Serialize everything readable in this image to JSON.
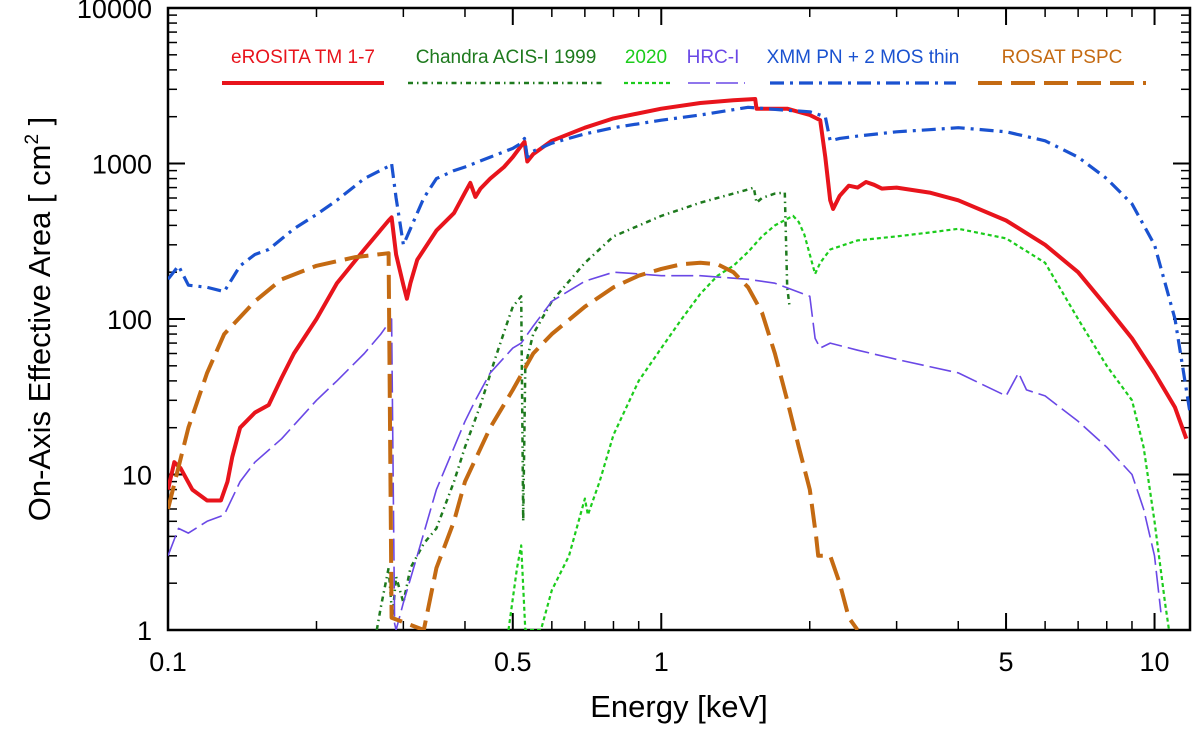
{
  "chart_data": {
    "type": "line",
    "xscale": "log",
    "yscale": "log",
    "xlim": [
      0.1,
      11.8
    ],
    "ylim": [
      1,
      10000
    ],
    "xlabel": "Energy  [keV]",
    "ylabel": {
      "text": "On-Axis Effective Area  [ cm",
      "sup": "2",
      "close": " ]"
    },
    "x_ticks": [
      {
        "value": 0.1,
        "label": "0.1"
      },
      {
        "value": 0.5,
        "label": "0.5"
      },
      {
        "value": 1,
        "label": "1"
      },
      {
        "value": 5,
        "label": "5"
      },
      {
        "value": 10,
        "label": "10"
      }
    ],
    "y_ticks": [
      {
        "value": 1,
        "label": "1"
      },
      {
        "value": 10,
        "label": "10"
      },
      {
        "value": 100,
        "label": "100"
      },
      {
        "value": 1000,
        "label": "1000"
      },
      {
        "value": 10000,
        "label": "10000"
      }
    ],
    "legend_position": "top",
    "series": [
      {
        "id": "erosita",
        "name": "eROSITA TM 1-7",
        "color": "#e8141c",
        "dash": "solid",
        "width": 4,
        "points": [
          [
            0.1,
            8
          ],
          [
            0.103,
            12
          ],
          [
            0.106,
            11
          ],
          [
            0.112,
            8
          ],
          [
            0.12,
            6.8
          ],
          [
            0.128,
            6.8
          ],
          [
            0.132,
            9
          ],
          [
            0.135,
            13
          ],
          [
            0.14,
            20
          ],
          [
            0.15,
            25
          ],
          [
            0.16,
            28
          ],
          [
            0.17,
            42
          ],
          [
            0.18,
            60
          ],
          [
            0.2,
            100
          ],
          [
            0.22,
            170
          ],
          [
            0.25,
            280
          ],
          [
            0.28,
            430
          ],
          [
            0.284,
            450
          ],
          [
            0.29,
            260
          ],
          [
            0.3,
            165
          ],
          [
            0.305,
            135
          ],
          [
            0.31,
            170
          ],
          [
            0.32,
            240
          ],
          [
            0.35,
            370
          ],
          [
            0.38,
            480
          ],
          [
            0.4,
            650
          ],
          [
            0.41,
            750
          ],
          [
            0.42,
            610
          ],
          [
            0.43,
            690
          ],
          [
            0.45,
            800
          ],
          [
            0.48,
            950
          ],
          [
            0.5,
            1100
          ],
          [
            0.52,
            1300
          ],
          [
            0.528,
            1380
          ],
          [
            0.535,
            1030
          ],
          [
            0.55,
            1150
          ],
          [
            0.6,
            1400
          ],
          [
            0.7,
            1700
          ],
          [
            0.8,
            1950
          ],
          [
            1.0,
            2250
          ],
          [
            1.2,
            2450
          ],
          [
            1.4,
            2550
          ],
          [
            1.55,
            2600
          ],
          [
            1.56,
            2250
          ],
          [
            1.8,
            2250
          ],
          [
            2.0,
            2050
          ],
          [
            2.1,
            1900
          ],
          [
            2.15,
            1100
          ],
          [
            2.2,
            580
          ],
          [
            2.23,
            510
          ],
          [
            2.3,
            620
          ],
          [
            2.4,
            720
          ],
          [
            2.5,
            700
          ],
          [
            2.6,
            760
          ],
          [
            2.7,
            730
          ],
          [
            2.8,
            690
          ],
          [
            3.0,
            700
          ],
          [
            3.5,
            650
          ],
          [
            4.0,
            580
          ],
          [
            5.0,
            430
          ],
          [
            6.0,
            300
          ],
          [
            7.0,
            200
          ],
          [
            8.0,
            120
          ],
          [
            9.0,
            75
          ],
          [
            10.0,
            45
          ],
          [
            11.0,
            27
          ],
          [
            11.6,
            17
          ]
        ]
      },
      {
        "id": "acis1999",
        "name": "Chandra ACIS-I 1999",
        "color": "#1e7a1e",
        "dash": "5,4,1.5,4",
        "width": 2.5,
        "points": [
          [
            0.265,
            1
          ],
          [
            0.27,
            1.4
          ],
          [
            0.28,
            2.5
          ],
          [
            0.285,
            1.2
          ],
          [
            0.29,
            2.2
          ],
          [
            0.3,
            1.5
          ],
          [
            0.31,
            2.5
          ],
          [
            0.33,
            3.6
          ],
          [
            0.35,
            4.5
          ],
          [
            0.38,
            9
          ],
          [
            0.4,
            15
          ],
          [
            0.43,
            28
          ],
          [
            0.46,
            55
          ],
          [
            0.49,
            100
          ],
          [
            0.5,
            120
          ],
          [
            0.52,
            140
          ],
          [
            0.523,
            20
          ],
          [
            0.525,
            5
          ],
          [
            0.53,
            50
          ],
          [
            0.55,
            80
          ],
          [
            0.6,
            130
          ],
          [
            0.7,
            230
          ],
          [
            0.8,
            340
          ],
          [
            1.0,
            460
          ],
          [
            1.2,
            560
          ],
          [
            1.5,
            680
          ],
          [
            1.54,
            700
          ],
          [
            1.56,
            560
          ],
          [
            1.6,
            600
          ],
          [
            1.7,
            640
          ],
          [
            1.78,
            650
          ],
          [
            1.8,
            160
          ],
          [
            1.82,
            120
          ]
        ]
      },
      {
        "id": "acis2020",
        "name": "2020",
        "color": "#1ccc1c",
        "dash": "4,3",
        "width": 2.2,
        "points": [
          [
            0.49,
            1
          ],
          [
            0.51,
            2.5
          ],
          [
            0.52,
            3.5
          ],
          [
            0.53,
            1
          ],
          [
            0.57,
            1
          ],
          [
            0.6,
            1.8
          ],
          [
            0.65,
            3
          ],
          [
            0.7,
            7
          ],
          [
            0.71,
            5.5
          ],
          [
            0.75,
            9
          ],
          [
            0.8,
            18
          ],
          [
            0.9,
            40
          ],
          [
            1.0,
            65
          ],
          [
            1.1,
            100
          ],
          [
            1.2,
            145
          ],
          [
            1.3,
            190
          ],
          [
            1.4,
            220
          ],
          [
            1.5,
            270
          ],
          [
            1.6,
            340
          ],
          [
            1.7,
            400
          ],
          [
            1.8,
            440
          ],
          [
            1.85,
            460
          ],
          [
            1.9,
            420
          ],
          [
            1.95,
            350
          ],
          [
            2.0,
            260
          ],
          [
            2.05,
            195
          ],
          [
            2.1,
            230
          ],
          [
            2.2,
            280
          ],
          [
            2.5,
            320
          ],
          [
            3.0,
            340
          ],
          [
            3.5,
            360
          ],
          [
            4.0,
            380
          ],
          [
            5.0,
            330
          ],
          [
            6.0,
            230
          ],
          [
            7.0,
            100
          ],
          [
            8.0,
            50
          ],
          [
            9.0,
            30
          ],
          [
            9.5,
            15
          ],
          [
            10.0,
            5
          ],
          [
            10.5,
            1.5
          ],
          [
            10.7,
            1
          ]
        ]
      },
      {
        "id": "hrci",
        "name": "HRC-I",
        "color": "#6a48e6",
        "dash": "22,6",
        "width": 1.6,
        "points": [
          [
            0.1,
            3
          ],
          [
            0.105,
            4.5
          ],
          [
            0.11,
            4.2
          ],
          [
            0.12,
            5
          ],
          [
            0.13,
            5.5
          ],
          [
            0.14,
            9
          ],
          [
            0.15,
            12
          ],
          [
            0.17,
            17
          ],
          [
            0.2,
            30
          ],
          [
            0.22,
            40
          ],
          [
            0.25,
            60
          ],
          [
            0.27,
            80
          ],
          [
            0.284,
            100
          ],
          [
            0.288,
            1.1
          ],
          [
            0.29,
            1
          ],
          [
            0.3,
            1.5
          ],
          [
            0.32,
            3
          ],
          [
            0.35,
            8
          ],
          [
            0.4,
            22
          ],
          [
            0.42,
            30
          ],
          [
            0.45,
            45
          ],
          [
            0.5,
            65
          ],
          [
            0.52,
            70
          ],
          [
            0.55,
            90
          ],
          [
            0.6,
            130
          ],
          [
            0.7,
            175
          ],
          [
            0.8,
            200
          ],
          [
            0.9,
            195
          ],
          [
            1.0,
            190
          ],
          [
            1.2,
            190
          ],
          [
            1.5,
            180
          ],
          [
            1.7,
            170
          ],
          [
            2.0,
            140
          ],
          [
            2.05,
            75
          ],
          [
            2.1,
            65
          ],
          [
            2.2,
            70
          ],
          [
            2.5,
            63
          ],
          [
            3.0,
            55
          ],
          [
            4.0,
            45
          ],
          [
            5.0,
            32
          ],
          [
            5.3,
            45
          ],
          [
            5.5,
            35
          ],
          [
            6.0,
            32
          ],
          [
            7.0,
            22
          ],
          [
            8.0,
            15
          ],
          [
            9.0,
            10
          ],
          [
            9.5,
            6
          ],
          [
            10.0,
            3
          ],
          [
            10.3,
            1.3
          ]
        ]
      },
      {
        "id": "xmm",
        "name": "XMM PN + 2 MOS thin",
        "color": "#1a52d0",
        "dash": "14,6,3,6",
        "width": 3.2,
        "points": [
          [
            0.1,
            180
          ],
          [
            0.105,
            220
          ],
          [
            0.11,
            165
          ],
          [
            0.12,
            160
          ],
          [
            0.13,
            150
          ],
          [
            0.14,
            220
          ],
          [
            0.15,
            260
          ],
          [
            0.16,
            280
          ],
          [
            0.18,
            380
          ],
          [
            0.2,
            470
          ],
          [
            0.22,
            580
          ],
          [
            0.25,
            800
          ],
          [
            0.28,
            960
          ],
          [
            0.284,
            1000
          ],
          [
            0.29,
            600
          ],
          [
            0.3,
            300
          ],
          [
            0.31,
            380
          ],
          [
            0.33,
            600
          ],
          [
            0.35,
            800
          ],
          [
            0.38,
            900
          ],
          [
            0.4,
            950
          ],
          [
            0.45,
            1100
          ],
          [
            0.5,
            1250
          ],
          [
            0.52,
            1350
          ],
          [
            0.528,
            1450
          ],
          [
            0.535,
            1100
          ],
          [
            0.55,
            1200
          ],
          [
            0.6,
            1350
          ],
          [
            0.7,
            1550
          ],
          [
            0.8,
            1700
          ],
          [
            1.0,
            1900
          ],
          [
            1.2,
            2050
          ],
          [
            1.5,
            2300
          ],
          [
            1.8,
            2200
          ],
          [
            2.0,
            2150
          ],
          [
            2.15,
            2000
          ],
          [
            2.2,
            1400
          ],
          [
            2.3,
            1450
          ],
          [
            2.5,
            1500
          ],
          [
            3.0,
            1600
          ],
          [
            3.5,
            1650
          ],
          [
            4.0,
            1700
          ],
          [
            5.0,
            1600
          ],
          [
            6.0,
            1400
          ],
          [
            7.0,
            1100
          ],
          [
            8.0,
            800
          ],
          [
            9.0,
            550
          ],
          [
            10.0,
            300
          ],
          [
            11.0,
            100
          ],
          [
            11.8,
            25
          ]
        ]
      },
      {
        "id": "rosat",
        "name": "ROSAT PSPC",
        "color": "#c46a12",
        "dash": "24,9",
        "width": 4,
        "points": [
          [
            0.1,
            6
          ],
          [
            0.11,
            20
          ],
          [
            0.12,
            45
          ],
          [
            0.13,
            80
          ],
          [
            0.15,
            130
          ],
          [
            0.17,
            180
          ],
          [
            0.2,
            220
          ],
          [
            0.24,
            250
          ],
          [
            0.28,
            265
          ],
          [
            0.284,
            1.2
          ],
          [
            0.33,
            1
          ],
          [
            0.35,
            2.5
          ],
          [
            0.38,
            5
          ],
          [
            0.4,
            9
          ],
          [
            0.45,
            20
          ],
          [
            0.5,
            35
          ],
          [
            0.55,
            60
          ],
          [
            0.6,
            80
          ],
          [
            0.7,
            120
          ],
          [
            0.8,
            160
          ],
          [
            0.9,
            190
          ],
          [
            1.0,
            210
          ],
          [
            1.1,
            225
          ],
          [
            1.2,
            230
          ],
          [
            1.3,
            225
          ],
          [
            1.4,
            200
          ],
          [
            1.5,
            160
          ],
          [
            1.6,
            110
          ],
          [
            1.7,
            60
          ],
          [
            1.8,
            30
          ],
          [
            1.9,
            15
          ],
          [
            2.0,
            8
          ],
          [
            2.06,
            4
          ],
          [
            2.08,
            3
          ],
          [
            2.2,
            3
          ],
          [
            2.3,
            2
          ],
          [
            2.4,
            1.2
          ],
          [
            2.5,
            1
          ]
        ]
      }
    ]
  }
}
